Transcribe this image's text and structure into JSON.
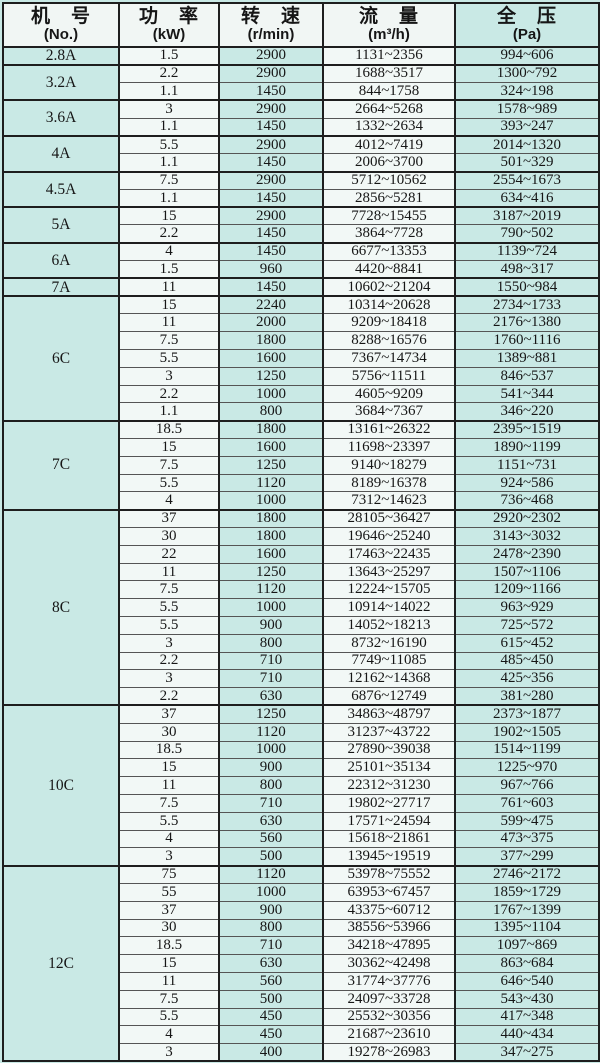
{
  "header": {
    "columns": [
      {
        "id": "model",
        "title": "机　号",
        "unit": "(No.)"
      },
      {
        "id": "power",
        "title": "功　率",
        "unit": "(kW)"
      },
      {
        "id": "speed",
        "title": "转　速",
        "unit": "(r/min)"
      },
      {
        "id": "flow",
        "title": "流　量",
        "unit": "(m³/h)"
      },
      {
        "id": "pressure",
        "title": "全　压",
        "unit": "(Pa)"
      }
    ]
  },
  "table": {
    "groups": [
      {
        "model": "2.8A",
        "rows": [
          [
            "1.5",
            "2900",
            "1131~2356",
            "994~606"
          ]
        ]
      },
      {
        "model": "3.2A",
        "rows": [
          [
            "2.2",
            "2900",
            "1688~3517",
            "1300~792"
          ],
          [
            "1.1",
            "1450",
            "844~1758",
            "324~198"
          ]
        ]
      },
      {
        "model": "3.6A",
        "rows": [
          [
            "3",
            "2900",
            "2664~5268",
            "1578~989"
          ],
          [
            "1.1",
            "1450",
            "1332~2634",
            "393~247"
          ]
        ]
      },
      {
        "model": "4A",
        "rows": [
          [
            "5.5",
            "2900",
            "4012~7419",
            "2014~1320"
          ],
          [
            "1.1",
            "1450",
            "2006~3700",
            "501~329"
          ]
        ]
      },
      {
        "model": "4.5A",
        "rows": [
          [
            "7.5",
            "2900",
            "5712~10562",
            "2554~1673"
          ],
          [
            "1.1",
            "1450",
            "2856~5281",
            "634~416"
          ]
        ]
      },
      {
        "model": "5A",
        "rows": [
          [
            "15",
            "2900",
            "7728~15455",
            "3187~2019"
          ],
          [
            "2.2",
            "1450",
            "3864~7728",
            "790~502"
          ]
        ]
      },
      {
        "model": "6A",
        "rows": [
          [
            "4",
            "1450",
            "6677~13353",
            "1139~724"
          ],
          [
            "1.5",
            "960",
            "4420~8841",
            "498~317"
          ]
        ]
      },
      {
        "model": "7A",
        "rows": [
          [
            "11",
            "1450",
            "10602~21204",
            "1550~984"
          ]
        ]
      },
      {
        "model": "6C",
        "rows": [
          [
            "15",
            "2240",
            "10314~20628",
            "2734~1733"
          ],
          [
            "11",
            "2000",
            "9209~18418",
            "2176~1380"
          ],
          [
            "7.5",
            "1800",
            "8288~16576",
            "1760~1116"
          ],
          [
            "5.5",
            "1600",
            "7367~14734",
            "1389~881"
          ],
          [
            "3",
            "1250",
            "5756~11511",
            "846~537"
          ],
          [
            "2.2",
            "1000",
            "4605~9209",
            "541~344"
          ],
          [
            "1.1",
            "800",
            "3684~7367",
            "346~220"
          ]
        ]
      },
      {
        "model": "7C",
        "rows": [
          [
            "18.5",
            "1800",
            "13161~26322",
            "2395~1519"
          ],
          [
            "15",
            "1600",
            "11698~23397",
            "1890~1199"
          ],
          [
            "7.5",
            "1250",
            "9140~18279",
            "1151~731"
          ],
          [
            "5.5",
            "1120",
            "8189~16378",
            "924~586"
          ],
          [
            "4",
            "1000",
            "7312~14623",
            "736~468"
          ]
        ]
      },
      {
        "model": "8C",
        "rows": [
          [
            "37",
            "1800",
            "28105~36427",
            "2920~2302"
          ],
          [
            "30",
            "1800",
            "19646~25240",
            "3143~3032"
          ],
          [
            "22",
            "1600",
            "17463~22435",
            "2478~2390"
          ],
          [
            "11",
            "1250",
            "13643~25297",
            "1507~1106"
          ],
          [
            "7.5",
            "1120",
            "12224~15705",
            "1209~1166"
          ],
          [
            "5.5",
            "1000",
            "10914~14022",
            "963~929"
          ],
          [
            "5.5",
            "900",
            "14052~18213",
            "725~572"
          ],
          [
            "3",
            "800",
            "8732~16190",
            "615~452"
          ],
          [
            "2.2",
            "710",
            "7749~11085",
            "485~450"
          ],
          [
            "3",
            "710",
            "12162~14368",
            "425~356"
          ],
          [
            "2.2",
            "630",
            "6876~12749",
            "381~280"
          ]
        ]
      },
      {
        "model": "10C",
        "rows": [
          [
            "37",
            "1250",
            "34863~48797",
            "2373~1877"
          ],
          [
            "30",
            "1120",
            "31237~43722",
            "1902~1505"
          ],
          [
            "18.5",
            "1000",
            "27890~39038",
            "1514~1199"
          ],
          [
            "15",
            "900",
            "25101~35134",
            "1225~970"
          ],
          [
            "11",
            "800",
            "22312~31230",
            "967~766"
          ],
          [
            "7.5",
            "710",
            "19802~27717",
            "761~603"
          ],
          [
            "5.5",
            "630",
            "17571~24594",
            "599~475"
          ],
          [
            "4",
            "560",
            "15618~21861",
            "473~375"
          ],
          [
            "3",
            "500",
            "13945~19519",
            "377~299"
          ]
        ]
      },
      {
        "model": "12C",
        "rows": [
          [
            "75",
            "1120",
            "53978~75552",
            "2746~2172"
          ],
          [
            "55",
            "1000",
            "63953~67457",
            "1859~1729"
          ],
          [
            "37",
            "900",
            "43375~60712",
            "1767~1399"
          ],
          [
            "30",
            "800",
            "38556~53966",
            "1395~1104"
          ],
          [
            "18.5",
            "710",
            "34218~47895",
            "1097~869"
          ],
          [
            "15",
            "630",
            "30362~42498",
            "863~684"
          ],
          [
            "11",
            "560",
            "31774~37776",
            "646~540"
          ],
          [
            "7.5",
            "500",
            "24097~33728",
            "543~430"
          ],
          [
            "5.5",
            "450",
            "25532~30356",
            "417~348"
          ],
          [
            "4",
            "450",
            "21687~23610",
            "440~434"
          ],
          [
            "3",
            "400",
            "19278~26983",
            "347~275"
          ]
        ]
      }
    ]
  },
  "colors": {
    "cell_cyan": "#c9e9e5",
    "cell_light": "#f2f8f6",
    "header_light": "#f1f6f4",
    "border_dark": "#1e1e1e",
    "row_line": "#555555",
    "text": "#161616"
  }
}
